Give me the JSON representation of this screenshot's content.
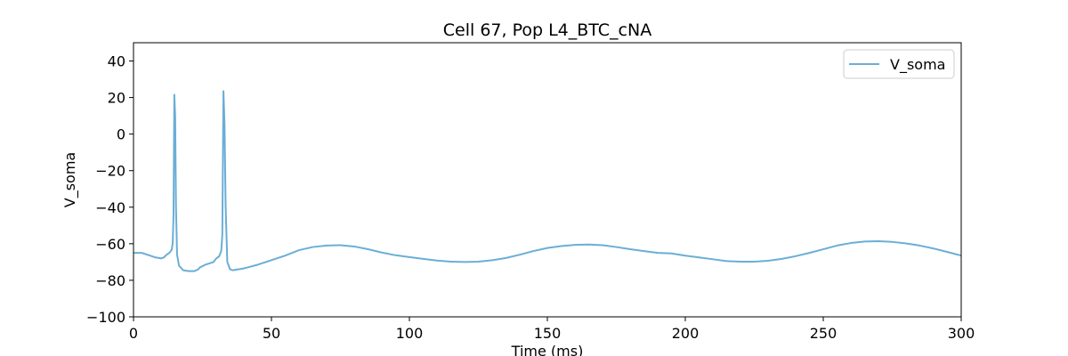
{
  "chart_data": {
    "type": "line",
    "title": "Cell 67, Pop L4_BTC_cNA",
    "xlabel": "Time (ms)",
    "ylabel": "V_soma",
    "xlim": [
      0,
      300
    ],
    "ylim": [
      -100,
      50
    ],
    "xticks": [
      0,
      50,
      100,
      150,
      200,
      250,
      300
    ],
    "yticks": [
      -100,
      -80,
      -60,
      -40,
      -20,
      0,
      20,
      40
    ],
    "grid": false,
    "legend": {
      "position": "top-right",
      "entries": [
        "V_soma"
      ]
    },
    "series": [
      {
        "name": "V_soma",
        "color": "#6baed6",
        "points": [
          [
            0,
            -65
          ],
          [
            3,
            -65
          ],
          [
            6,
            -66.5
          ],
          [
            8,
            -67.5
          ],
          [
            10,
            -68
          ],
          [
            11,
            -67.5
          ],
          [
            12,
            -66
          ],
          [
            13,
            -65
          ],
          [
            13.8,
            -63.5
          ],
          [
            14.2,
            -60
          ],
          [
            14.5,
            -45
          ],
          [
            14.8,
            21.5
          ],
          [
            15.1,
            10
          ],
          [
            15.4,
            -40
          ],
          [
            15.8,
            -66
          ],
          [
            16.5,
            -72
          ],
          [
            18,
            -74.5
          ],
          [
            20,
            -75
          ],
          [
            22,
            -75
          ],
          [
            23.5,
            -74
          ],
          [
            24,
            -73
          ],
          [
            26,
            -71.5
          ],
          [
            29,
            -70
          ],
          [
            30,
            -68
          ],
          [
            31,
            -67
          ],
          [
            31.8,
            -64
          ],
          [
            32.2,
            -55
          ],
          [
            32.6,
            23.5
          ],
          [
            33,
            5
          ],
          [
            33.4,
            -40
          ],
          [
            34,
            -70
          ],
          [
            35,
            -74
          ],
          [
            36,
            -74.5
          ],
          [
            40,
            -73.5
          ],
          [
            45,
            -71.5
          ],
          [
            50,
            -69
          ],
          [
            55,
            -66.5
          ],
          [
            60,
            -63.5
          ],
          [
            65,
            -61.8
          ],
          [
            70,
            -61
          ],
          [
            75,
            -60.8
          ],
          [
            80,
            -61.5
          ],
          [
            85,
            -63
          ],
          [
            90,
            -64.8
          ],
          [
            95,
            -66.3
          ],
          [
            100,
            -67.3
          ],
          [
            105,
            -68.3
          ],
          [
            110,
            -69.2
          ],
          [
            115,
            -69.8
          ],
          [
            120,
            -70
          ],
          [
            125,
            -69.8
          ],
          [
            130,
            -69
          ],
          [
            135,
            -67.8
          ],
          [
            140,
            -66
          ],
          [
            145,
            -64
          ],
          [
            150,
            -62.3
          ],
          [
            155,
            -61.3
          ],
          [
            160,
            -60.6
          ],
          [
            165,
            -60.4
          ],
          [
            170,
            -60.8
          ],
          [
            175,
            -61.8
          ],
          [
            180,
            -63
          ],
          [
            185,
            -64
          ],
          [
            190,
            -65
          ],
          [
            195,
            -65.3
          ],
          [
            200,
            -66.5
          ],
          [
            205,
            -67.5
          ],
          [
            210,
            -68.5
          ],
          [
            215,
            -69.5
          ],
          [
            220,
            -69.8
          ],
          [
            225,
            -69.8
          ],
          [
            230,
            -69.3
          ],
          [
            235,
            -68.3
          ],
          [
            240,
            -66.8
          ],
          [
            245,
            -65
          ],
          [
            250,
            -63
          ],
          [
            255,
            -61
          ],
          [
            260,
            -59.6
          ],
          [
            265,
            -58.8
          ],
          [
            270,
            -58.6
          ],
          [
            275,
            -59
          ],
          [
            280,
            -59.8
          ],
          [
            285,
            -61
          ],
          [
            290,
            -62.6
          ],
          [
            295,
            -64.5
          ],
          [
            300,
            -66.5
          ]
        ]
      }
    ]
  }
}
